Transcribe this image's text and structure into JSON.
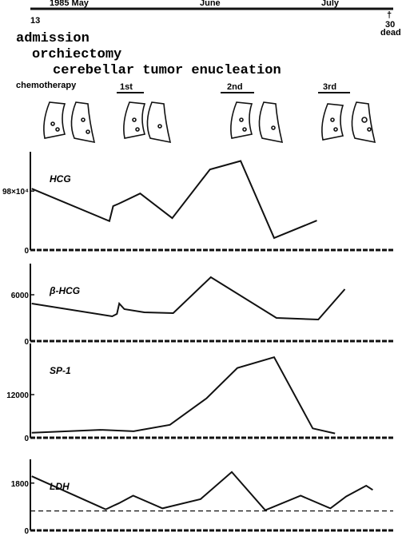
{
  "timeline": {
    "months": [
      "1985 May",
      "June",
      "July"
    ],
    "start_day": "13",
    "death_mark": "†",
    "end_day": "30",
    "end_note": "dead",
    "events": [
      "admission",
      "orchiectomy",
      "cerebellar tumor enucleation"
    ],
    "chemotherapy": {
      "label": "chemotherapy",
      "courses": [
        "1st",
        "2nd",
        "3rd"
      ]
    }
  },
  "chart_data": [
    {
      "type": "line",
      "title": "HCG",
      "color": "#111",
      "xlim": [
        0,
        78
      ],
      "ylim": [
        0,
        150
      ],
      "yticks": [
        0,
        {
          "value": 98,
          "label": "98×10⁴"
        }
      ],
      "x": [
        0.3,
        17,
        17.8,
        19,
        23.6,
        30.5,
        38.6,
        45.2,
        52.4,
        61.6
      ],
      "values": [
        102,
        48,
        73,
        77,
        94,
        53,
        134,
        148,
        20,
        49
      ]
    },
    {
      "type": "line",
      "title": "β-HCG",
      "color": "#111",
      "xlim": [
        0,
        78
      ],
      "ylim": [
        0,
        9000
      ],
      "yticks": [
        0,
        6000
      ],
      "x": [
        0.3,
        17.6,
        18.6,
        19.1,
        20.2,
        24.5,
        30.7,
        38.8,
        52.9,
        61.9,
        67.6
      ],
      "values": [
        4860,
        3210,
        3520,
        4860,
        4140,
        3720,
        3620,
        8280,
        3000,
        2790,
        6720
      ]
    },
    {
      "type": "line",
      "title": "SP-1",
      "color": "#111",
      "xlim": [
        0,
        78
      ],
      "ylim": [
        0,
        24000
      ],
      "yticks": [
        0,
        12000
      ],
      "x": [
        0.3,
        15,
        22.2,
        30,
        37.9,
        44.5,
        52.4,
        60.7,
        65.5
      ],
      "values": [
        1400,
        2200,
        1800,
        3600,
        11000,
        19400,
        22400,
        2600,
        1200
      ]
    },
    {
      "type": "line",
      "title": "LDH",
      "color": "#111",
      "xlim": [
        0,
        78
      ],
      "ylim": [
        0,
        2400
      ],
      "yticks": [
        0,
        1800
      ],
      "reference_line": 740,
      "x": [
        0.3,
        16.2,
        18.1,
        19,
        22.1,
        28.4,
        36.6,
        43.3,
        50.5,
        58.1,
        64.5,
        67.9,
        72.2,
        73.6
      ],
      "values": [
        2060,
        800,
        960,
        1030,
        1320,
        840,
        1190,
        2220,
        770,
        1320,
        840,
        1290,
        1700,
        1540
      ]
    }
  ]
}
